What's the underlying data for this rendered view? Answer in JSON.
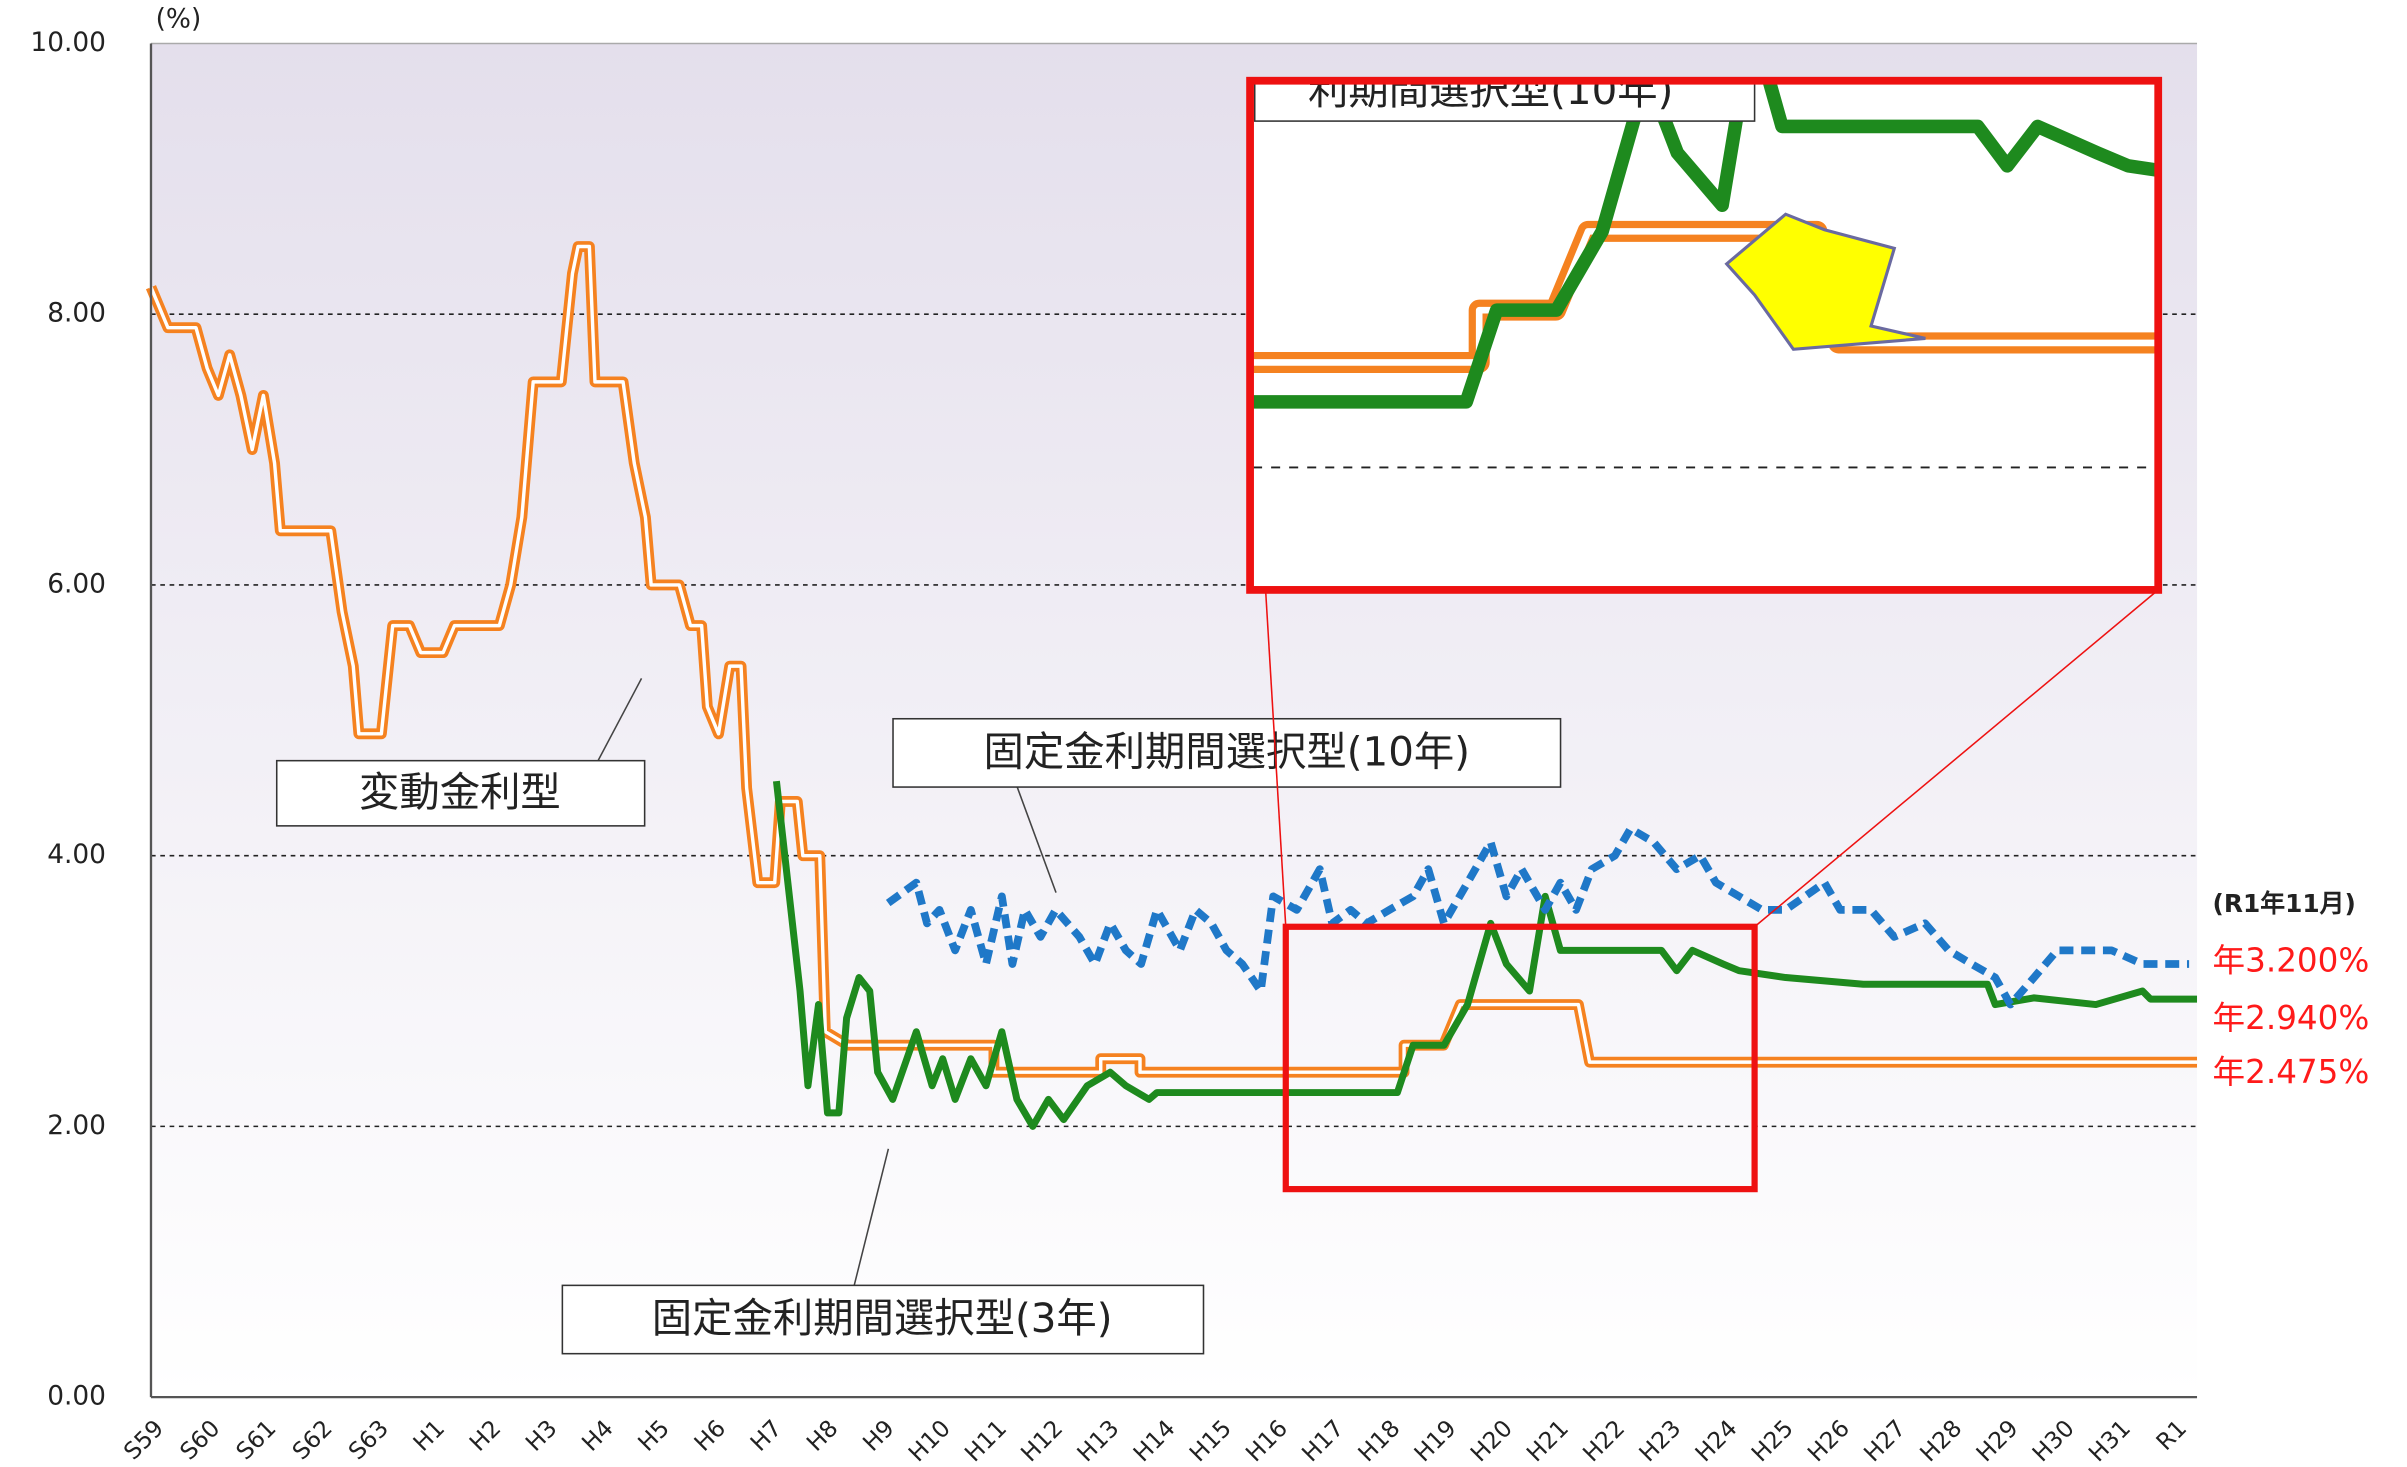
{
  "chart_data": {
    "type": "line",
    "y_unit": "(%)",
    "categories": [
      "S59",
      "S60",
      "S61",
      "S62",
      "S63",
      "H1",
      "H2",
      "H3",
      "H4",
      "H5",
      "H6",
      "H7",
      "H8",
      "H9",
      "H10",
      "H11",
      "H12",
      "H13",
      "H14",
      "H15",
      "H16",
      "H17",
      "H18",
      "H19",
      "H20",
      "H21",
      "H22",
      "H23",
      "H24",
      "H25",
      "H26",
      "H27",
      "H28",
      "H29",
      "H30",
      "H31",
      "R1"
    ],
    "xlim": [
      0,
      36.41
    ],
    "ylim": [
      0,
      10
    ],
    "yticks": [
      {
        "value": 0,
        "label": "0.00"
      },
      {
        "value": 2,
        "label": "2.00"
      },
      {
        "value": 4,
        "label": "4.00"
      },
      {
        "value": 6,
        "label": "6.00"
      },
      {
        "value": 8,
        "label": "8.00"
      },
      {
        "value": 10,
        "label": "10.00"
      }
    ],
    "grid": true,
    "series": [
      {
        "name": "変動金利型",
        "color": "#f58220",
        "style": "double",
        "x": [
          0,
          0.3,
          0.8,
          1.0,
          1.2,
          1.4,
          1.6,
          1.8,
          2.0,
          2.2,
          2.3,
          3.2,
          3.4,
          3.6,
          3.7,
          4.1,
          4.3,
          4.6,
          4.8,
          5.2,
          5.4,
          6.2,
          6.4,
          6.6,
          6.8,
          7.3,
          7.5,
          7.6,
          7.8,
          7.9,
          8.4,
          8.6,
          8.8,
          8.9,
          9.4,
          9.6,
          9.8,
          9.9,
          10.1,
          10.3,
          10.5,
          10.6,
          10.8,
          11.1,
          11.2,
          11.5,
          11.6,
          11.9,
          12.0,
          12.4,
          15.0,
          15.0,
          16.9,
          16.9,
          17.6,
          17.6,
          22.3,
          22.3,
          23.0,
          23.3,
          25.4,
          25.6,
          36.41
        ],
        "values": [
          8.2,
          7.9,
          7.9,
          7.6,
          7.4,
          7.7,
          7.4,
          7.0,
          7.4,
          6.9,
          6.4,
          6.4,
          5.8,
          5.4,
          4.9,
          4.9,
          5.7,
          5.7,
          5.5,
          5.5,
          5.7,
          5.7,
          6.0,
          6.5,
          7.5,
          7.5,
          8.3,
          8.5,
          8.5,
          7.5,
          7.5,
          6.9,
          6.5,
          6.0,
          6.0,
          5.7,
          5.7,
          5.1,
          4.9,
          5.4,
          5.4,
          4.5,
          3.8,
          3.8,
          4.4,
          4.4,
          4.0,
          4.0,
          2.7,
          2.6,
          2.6,
          2.4,
          2.4,
          2.5,
          2.5,
          2.4,
          2.4,
          2.6,
          2.6,
          2.9,
          2.9,
          2.475,
          2.475
        ]
      },
      {
        "name": "固定金利期間選択型(3年)",
        "color": "#1e8a1e",
        "style": "solid",
        "x": [
          11.13,
          11.55,
          11.69,
          11.88,
          12.04,
          12.24,
          12.38,
          12.6,
          12.79,
          12.93,
          13.2,
          13.62,
          13.9,
          14.09,
          14.31,
          14.59,
          14.86,
          15.14,
          15.41,
          15.69,
          15.97,
          16.24,
          16.66,
          17.07,
          17.35,
          17.76,
          17.9,
          22.18,
          22.46,
          23.01,
          23.43,
          23.84,
          24.12,
          24.53,
          24.81,
          25.08,
          26.88,
          27.15,
          27.43,
          27.98,
          28.26,
          29.09,
          30.47,
          32.68,
          32.82,
          33.51,
          34.61,
          35.44,
          35.58,
          36.41
        ],
        "values": [
          4.55,
          3.0,
          2.3,
          2.9,
          2.1,
          2.1,
          2.8,
          3.1,
          3.0,
          2.4,
          2.2,
          2.7,
          2.3,
          2.5,
          2.2,
          2.5,
          2.3,
          2.7,
          2.2,
          2.0,
          2.2,
          2.05,
          2.3,
          2.4,
          2.3,
          2.2,
          2.25,
          2.25,
          2.6,
          2.6,
          2.9,
          3.5,
          3.2,
          3.0,
          3.7,
          3.3,
          3.3,
          3.15,
          3.3,
          3.2,
          3.15,
          3.1,
          3.05,
          3.05,
          2.9,
          2.95,
          2.9,
          3.0,
          2.94,
          2.94
        ]
      },
      {
        "name": "固定金利期間選択型(10年)",
        "color": "#1f78c8",
        "style": "dashed",
        "x": [
          13.12,
          13.62,
          13.81,
          14.03,
          14.31,
          14.59,
          14.86,
          15.14,
          15.33,
          15.55,
          15.83,
          16.1,
          16.52,
          16.8,
          17.07,
          17.35,
          17.62,
          17.9,
          18.31,
          18.59,
          18.87,
          19.14,
          19.42,
          19.75,
          19.97,
          20.39,
          20.8,
          21.02,
          21.35,
          21.63,
          22.04,
          22.46,
          22.73,
          23.01,
          23.43,
          23.84,
          24.12,
          24.39,
          24.81,
          25.08,
          25.36,
          25.64,
          26.05,
          26.33,
          26.74,
          27.15,
          27.57,
          27.85,
          28.26,
          28.67,
          29.09,
          29.78,
          30.06,
          30.61,
          31.02,
          31.57,
          31.99,
          32.4,
          32.82,
          33.09,
          33.51,
          33.92,
          34.34,
          34.89,
          35.44,
          35.86,
          36.27
        ],
        "values": [
          3.65,
          3.8,
          3.5,
          3.6,
          3.3,
          3.6,
          3.2,
          3.7,
          3.2,
          3.6,
          3.4,
          3.6,
          3.4,
          3.2,
          3.5,
          3.3,
          3.2,
          3.6,
          3.3,
          3.6,
          3.5,
          3.3,
          3.2,
          3.0,
          3.7,
          3.6,
          3.9,
          3.5,
          3.6,
          3.5,
          3.6,
          3.7,
          3.9,
          3.5,
          3.8,
          4.1,
          3.7,
          3.9,
          3.6,
          3.8,
          3.6,
          3.9,
          4.0,
          4.2,
          4.1,
          3.9,
          4.0,
          3.8,
          3.7,
          3.6,
          3.6,
          3.8,
          3.6,
          3.6,
          3.4,
          3.5,
          3.3,
          3.2,
          3.1,
          2.9,
          3.1,
          3.3,
          3.3,
          3.3,
          3.2,
          3.2,
          3.2
        ]
      }
    ],
    "latest_date": "(R1年11月)",
    "latest_labels": [
      "年3.200%",
      "年2.940%",
      "年2.475%"
    ],
    "inset_caption": "利期間選択型(10年)"
  }
}
